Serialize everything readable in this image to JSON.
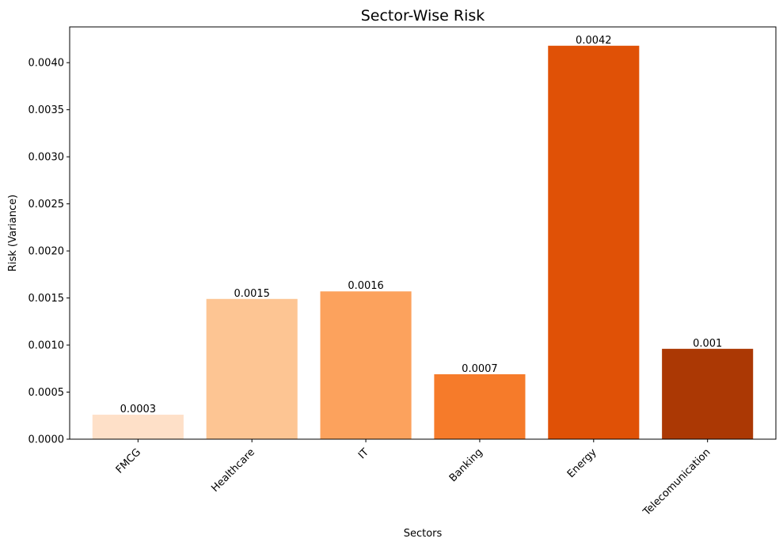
{
  "chart_data": {
    "type": "bar",
    "title": "Sector-Wise Risk",
    "xlabel": "Sectors",
    "ylabel": "Risk (Variance)",
    "categories": [
      "FMCG",
      "Healthcare",
      "IT",
      "Banking",
      "Energy",
      "Telecomunication"
    ],
    "values": [
      0.00026,
      0.00149,
      0.00157,
      0.00069,
      0.00418,
      0.00096
    ],
    "value_labels": [
      "0.0003",
      "0.0015",
      "0.0016",
      "0.0007",
      "0.0042",
      "0.001"
    ],
    "bar_colors": [
      "#fee0c8",
      "#fdc593",
      "#fca25d",
      "#f67b2a",
      "#e05106",
      "#ab3804"
    ],
    "ylim": [
      0,
      0.00438
    ],
    "yticks": [
      0.0,
      0.0005,
      0.001,
      0.0015,
      0.002,
      0.0025,
      0.003,
      0.0035,
      0.004
    ],
    "ytick_labels": [
      "0.0000",
      "0.0005",
      "0.0010",
      "0.0015",
      "0.0020",
      "0.0025",
      "0.0030",
      "0.0035",
      "0.0040"
    ],
    "xtick_rotation": 45,
    "grid": false,
    "legend": "none"
  }
}
